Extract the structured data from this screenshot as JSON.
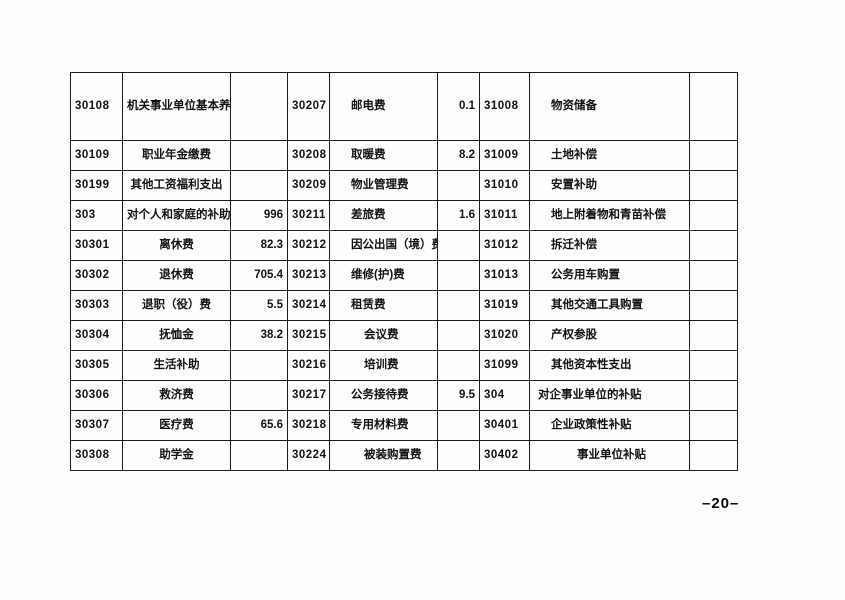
{
  "page": {
    "number_label": "–20–"
  },
  "table": {
    "rows": [
      {
        "cells": [
          "30108",
          "机关事业单位基本养老保险缴费",
          "",
          "30207",
          "邮电费",
          "0.1",
          "31008",
          "物资储备",
          ""
        ],
        "indents": [
          0,
          1,
          1
        ]
      },
      {
        "cells": [
          "30109",
          "职业年金缴费",
          "",
          "30208",
          "取暖费",
          "8.2",
          "31009",
          "土地补偿",
          ""
        ],
        "indents": [
          0,
          1,
          1
        ]
      },
      {
        "cells": [
          "30199",
          "其他工资福利支出",
          "",
          "30209",
          "物业管理费",
          "",
          "31010",
          "安置补助",
          ""
        ],
        "indents": [
          0,
          1,
          1
        ]
      },
      {
        "cells": [
          "303",
          "对个人和家庭的补助",
          "996",
          "30211",
          "差旅费",
          "1.6",
          "31011",
          "地上附着物和青苗补偿",
          ""
        ],
        "indents": [
          0,
          1,
          1
        ]
      },
      {
        "cells": [
          "30301",
          "离休费",
          "82.3",
          "30212",
          "因公出国（境）费用",
          "",
          "31012",
          "拆迁补偿",
          ""
        ],
        "indents": [
          0,
          1,
          1
        ]
      },
      {
        "cells": [
          "30302",
          "退休费",
          "705.4",
          "30213",
          "维修(护)费",
          "",
          "31013",
          "公务用车购置",
          ""
        ],
        "indents": [
          0,
          1,
          1
        ]
      },
      {
        "cells": [
          "30303",
          "退职（役）费",
          "5.5",
          "30214",
          "租赁费",
          "",
          "31019",
          "其他交通工具购置",
          ""
        ],
        "indents": [
          0,
          1,
          1
        ]
      },
      {
        "cells": [
          "30304",
          "抚恤金",
          "38.2",
          "30215",
          "会议费",
          "",
          "31020",
          "产权参股",
          ""
        ],
        "indents": [
          0,
          2,
          1
        ]
      },
      {
        "cells": [
          "30305",
          "生活补助",
          "",
          "30216",
          "培训费",
          "",
          "31099",
          "其他资本性支出",
          ""
        ],
        "indents": [
          0,
          2,
          1
        ]
      },
      {
        "cells": [
          "30306",
          "救济费",
          "",
          "30217",
          "公务接待费",
          "9.5",
          "304",
          "对企事业单位的补贴",
          ""
        ],
        "indents": [
          0,
          1,
          0
        ]
      },
      {
        "cells": [
          "30307",
          "医疗费",
          "65.6",
          "30218",
          "专用材料费",
          "",
          "30401",
          "企业政策性补贴",
          ""
        ],
        "indents": [
          0,
          1,
          1
        ]
      },
      {
        "cells": [
          "30308",
          "助学金",
          "",
          "30224",
          "被装购置费",
          "",
          "30402",
          "事业单位补贴",
          ""
        ],
        "indents": [
          0,
          2,
          3
        ]
      }
    ]
  }
}
